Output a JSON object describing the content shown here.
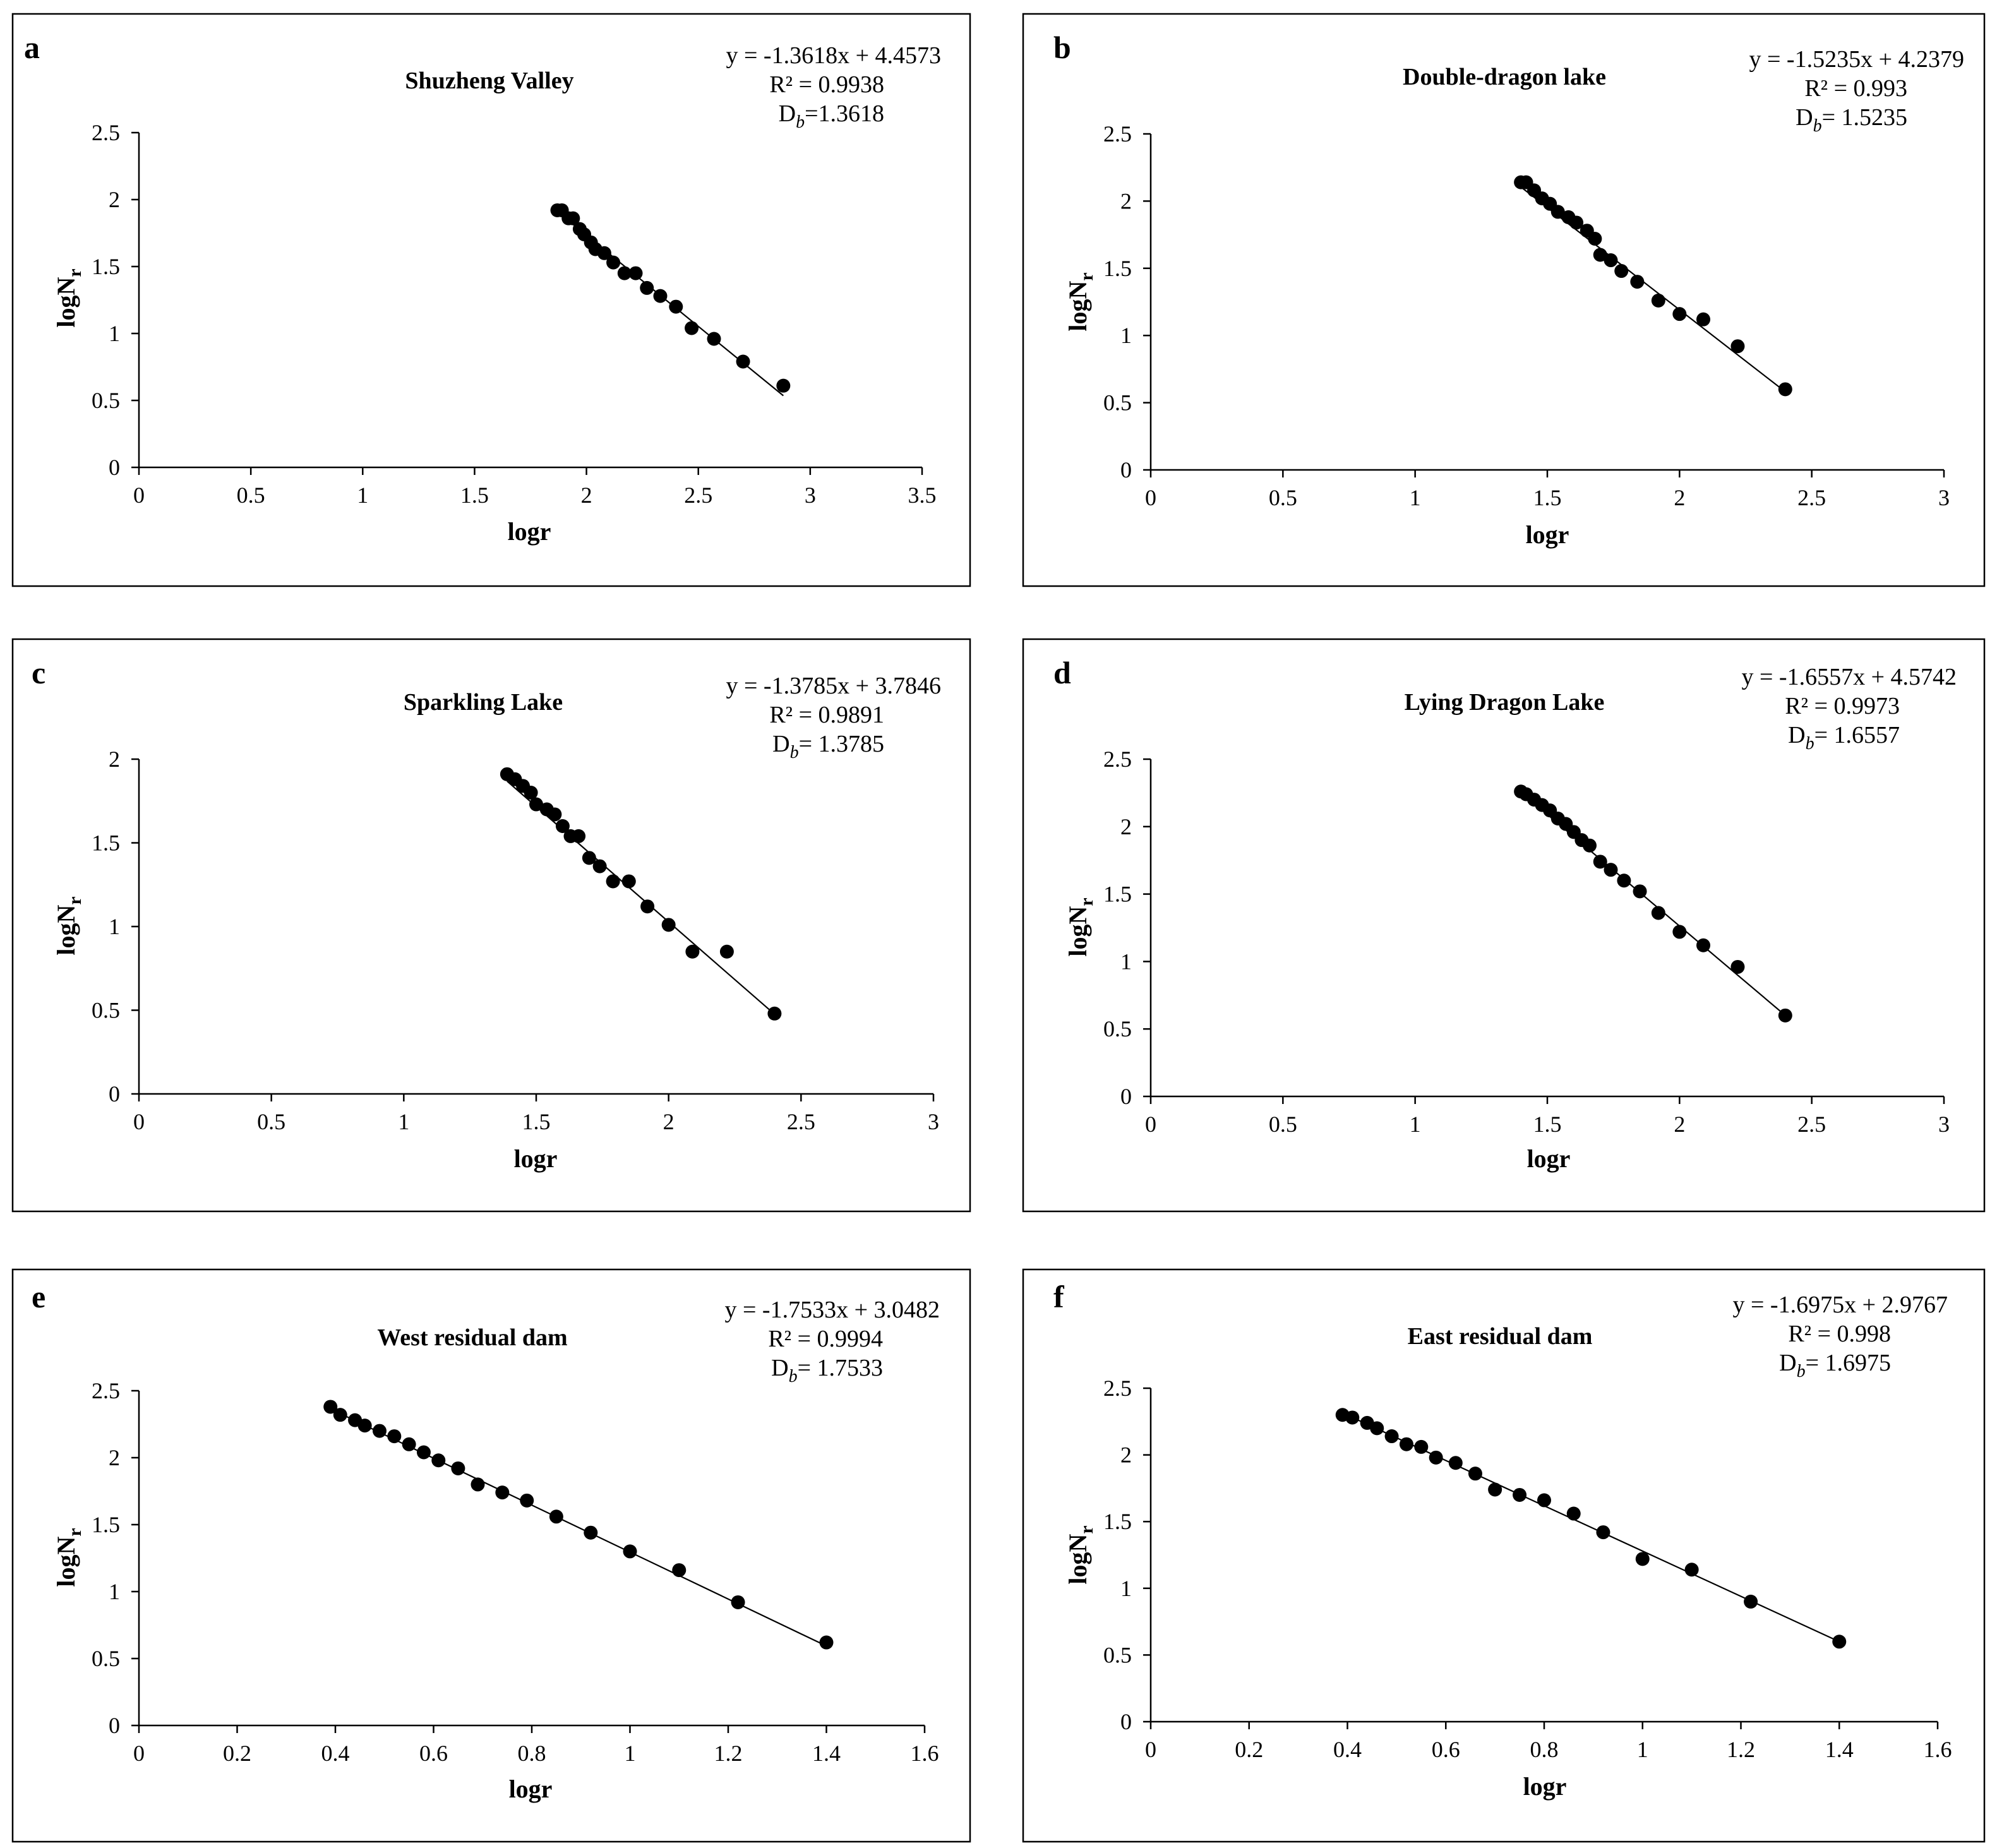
{
  "chart_data": [
    {
      "type": "scatter",
      "panel_letter": "a",
      "title": "Shuzheng Valley",
      "xlabel": "logr",
      "ylabel_main": "logN",
      "ylabel_sub": "r",
      "xlim": [
        0,
        3.5
      ],
      "xstep": 0.5,
      "xticks": [
        "0",
        "0.5",
        "1",
        "1.5",
        "2",
        "2.5",
        "3",
        "3.5"
      ],
      "ylim": [
        0,
        2.5
      ],
      "ystep": 0.5,
      "yticks": [
        "0",
        "0.5",
        "1",
        "1.5",
        "2",
        "2.5"
      ],
      "equation": "y = -1.3618x + 4.4573",
      "r2": "R² = 0.9938",
      "db_prefix": "D",
      "db_sub": "b",
      "db_value": "=1.3618",
      "slope": -1.3618,
      "intercept": 4.4573,
      "trend_x": [
        1.87,
        2.88
      ],
      "points": [
        [
          1.87,
          1.92
        ],
        [
          1.89,
          1.92
        ],
        [
          1.92,
          1.86
        ],
        [
          1.94,
          1.86
        ],
        [
          1.97,
          1.78
        ],
        [
          1.99,
          1.74
        ],
        [
          2.02,
          1.68
        ],
        [
          2.04,
          1.63
        ],
        [
          2.08,
          1.6
        ],
        [
          2.12,
          1.53
        ],
        [
          2.17,
          1.45
        ],
        [
          2.22,
          1.45
        ],
        [
          2.27,
          1.34
        ],
        [
          2.33,
          1.28
        ],
        [
          2.4,
          1.2
        ],
        [
          2.47,
          1.04
        ],
        [
          2.57,
          0.96
        ],
        [
          2.7,
          0.79
        ],
        [
          2.88,
          0.61
        ]
      ]
    },
    {
      "type": "scatter",
      "panel_letter": "b",
      "title": "Double-dragon lake",
      "xlabel": "logr",
      "ylabel_main": "logN",
      "ylabel_sub": "r",
      "xlim": [
        0,
        3
      ],
      "xstep": 0.5,
      "xticks": [
        "0",
        "0.5",
        "1",
        "1.5",
        "2",
        "2.5",
        "3"
      ],
      "ylim": [
        0,
        2.5
      ],
      "ystep": 0.5,
      "yticks": [
        "0",
        "0.5",
        "1",
        "1.5",
        "2",
        "2.5"
      ],
      "equation": "y = -1.5235x + 4.2379",
      "r2": "R² = 0.993",
      "db_prefix": "D",
      "db_sub": "b",
      "db_value": "= 1.5235",
      "slope": -1.5235,
      "intercept": 4.2379,
      "trend_x": [
        1.39,
        2.4
      ],
      "points": [
        [
          1.4,
          2.14
        ],
        [
          1.42,
          2.14
        ],
        [
          1.45,
          2.08
        ],
        [
          1.48,
          2.02
        ],
        [
          1.51,
          1.98
        ],
        [
          1.54,
          1.92
        ],
        [
          1.58,
          1.88
        ],
        [
          1.61,
          1.84
        ],
        [
          1.65,
          1.78
        ],
        [
          1.68,
          1.72
        ],
        [
          1.7,
          1.6
        ],
        [
          1.74,
          1.56
        ],
        [
          1.78,
          1.48
        ],
        [
          1.84,
          1.4
        ],
        [
          1.92,
          1.26
        ],
        [
          2.0,
          1.16
        ],
        [
          2.09,
          1.12
        ],
        [
          2.22,
          0.92
        ],
        [
          2.4,
          0.6
        ]
      ]
    },
    {
      "type": "scatter",
      "panel_letter": "c",
      "title": "Sparkling Lake",
      "xlabel": "logr",
      "ylabel_main": "logN",
      "ylabel_sub": "r",
      "xlim": [
        0,
        3
      ],
      "xstep": 0.5,
      "xticks": [
        "0",
        "0.5",
        "1",
        "1.5",
        "2",
        "2.5",
        "3"
      ],
      "ylim": [
        0,
        2
      ],
      "ystep": 0.5,
      "yticks": [
        "0",
        "0.5",
        "1",
        "1.5",
        "2"
      ],
      "equation": "y = -1.3785x + 3.7846",
      "r2": "R² = 0.9891",
      "db_prefix": "D",
      "db_sub": "b",
      "db_value": "= 1.3785",
      "slope": -1.3785,
      "intercept": 3.7846,
      "trend_x": [
        1.39,
        2.4
      ],
      "points": [
        [
          1.39,
          1.91
        ],
        [
          1.42,
          1.88
        ],
        [
          1.45,
          1.84
        ],
        [
          1.48,
          1.8
        ],
        [
          1.5,
          1.73
        ],
        [
          1.54,
          1.7
        ],
        [
          1.57,
          1.67
        ],
        [
          1.6,
          1.6
        ],
        [
          1.63,
          1.54
        ],
        [
          1.66,
          1.54
        ],
        [
          1.7,
          1.41
        ],
        [
          1.74,
          1.36
        ],
        [
          1.79,
          1.27
        ],
        [
          1.85,
          1.27
        ],
        [
          1.92,
          1.12
        ],
        [
          2.0,
          1.01
        ],
        [
          2.09,
          0.85
        ],
        [
          2.22,
          0.85
        ],
        [
          2.4,
          0.48
        ]
      ]
    },
    {
      "type": "scatter",
      "panel_letter": "d",
      "title": "Lying Dragon Lake",
      "xlabel": "logr",
      "ylabel_main": "logN",
      "ylabel_sub": "r",
      "xlim": [
        0,
        3
      ],
      "xstep": 0.5,
      "xticks": [
        "0",
        "0.5",
        "1",
        "1.5",
        "2",
        "2.5",
        "3"
      ],
      "ylim": [
        0,
        2.5
      ],
      "ystep": 0.5,
      "yticks": [
        "0",
        "0.5",
        "1",
        "1.5",
        "2",
        "2.5"
      ],
      "equation": "y = -1.6557x + 4.5742",
      "r2": "R² = 0.9973",
      "db_prefix": "D",
      "db_sub": "b",
      "db_value": "= 1.6557",
      "slope": -1.6557,
      "intercept": 4.5742,
      "trend_x": [
        1.39,
        2.4
      ],
      "points": [
        [
          1.4,
          2.26
        ],
        [
          1.42,
          2.24
        ],
        [
          1.45,
          2.2
        ],
        [
          1.48,
          2.16
        ],
        [
          1.51,
          2.12
        ],
        [
          1.54,
          2.06
        ],
        [
          1.57,
          2.02
        ],
        [
          1.6,
          1.96
        ],
        [
          1.63,
          1.9
        ],
        [
          1.66,
          1.86
        ],
        [
          1.7,
          1.74
        ],
        [
          1.74,
          1.68
        ],
        [
          1.79,
          1.6
        ],
        [
          1.85,
          1.52
        ],
        [
          1.92,
          1.36
        ],
        [
          2.0,
          1.22
        ],
        [
          2.09,
          1.12
        ],
        [
          2.22,
          0.96
        ],
        [
          2.4,
          0.6
        ]
      ]
    },
    {
      "type": "scatter",
      "panel_letter": "e",
      "title": "West residual dam",
      "xlabel": "logr",
      "ylabel_main": "logN",
      "ylabel_sub": "r",
      "xlim": [
        0,
        1.6
      ],
      "xstep": 0.2,
      "xticks": [
        "0",
        "0.2",
        "0.4",
        "0.6",
        "0.8",
        "1",
        "1.2",
        "1.4",
        "1.6"
      ],
      "ylim": [
        0,
        2.5
      ],
      "ystep": 0.5,
      "yticks": [
        "0",
        "0.5",
        "1",
        "1.5",
        "2",
        "2.5"
      ],
      "equation": "y = -1.7533x + 3.0482",
      "r2": "R² = 0.9994",
      "db_prefix": "D",
      "db_sub": "b",
      "db_value": "= 1.7533",
      "slope": -1.7533,
      "intercept": 3.0482,
      "trend_x": [
        0.39,
        1.4
      ],
      "points": [
        [
          0.39,
          2.38
        ],
        [
          0.41,
          2.32
        ],
        [
          0.44,
          2.28
        ],
        [
          0.46,
          2.24
        ],
        [
          0.49,
          2.2
        ],
        [
          0.52,
          2.16
        ],
        [
          0.55,
          2.1
        ],
        [
          0.58,
          2.04
        ],
        [
          0.61,
          1.98
        ],
        [
          0.65,
          1.92
        ],
        [
          0.69,
          1.8
        ],
        [
          0.74,
          1.74
        ],
        [
          0.79,
          1.68
        ],
        [
          0.85,
          1.56
        ],
        [
          0.92,
          1.44
        ],
        [
          1.0,
          1.3
        ],
        [
          1.1,
          1.16
        ],
        [
          1.22,
          0.92
        ],
        [
          1.4,
          0.62
        ]
      ]
    },
    {
      "type": "scatter",
      "panel_letter": "f",
      "title": "East residual dam",
      "xlabel": "logr",
      "ylabel_main": "logN",
      "ylabel_sub": "r",
      "xlim": [
        0,
        1.6
      ],
      "xstep": 0.2,
      "xticks": [
        "0",
        "0.2",
        "0.4",
        "0.6",
        "0.8",
        "1",
        "1.2",
        "1.4",
        "1.6"
      ],
      "ylim": [
        0,
        2.5
      ],
      "ystep": 0.5,
      "yticks": [
        "0",
        "0.5",
        "1",
        "1.5",
        "2",
        "2.5"
      ],
      "equation": "y = -1.6975x + 2.9767",
      "r2": "R² = 0.998",
      "db_prefix": "D",
      "db_sub": "b",
      "db_value": "= 1.6975",
      "slope": -1.6975,
      "intercept": 2.9767,
      "trend_x": [
        0.39,
        1.4
      ],
      "points": [
        [
          0.39,
          2.3
        ],
        [
          0.41,
          2.28
        ],
        [
          0.44,
          2.24
        ],
        [
          0.46,
          2.2
        ],
        [
          0.49,
          2.14
        ],
        [
          0.52,
          2.08
        ],
        [
          0.55,
          2.06
        ],
        [
          0.58,
          1.98
        ],
        [
          0.62,
          1.94
        ],
        [
          0.66,
          1.86
        ],
        [
          0.7,
          1.74
        ],
        [
          0.75,
          1.7
        ],
        [
          0.8,
          1.66
        ],
        [
          0.86,
          1.56
        ],
        [
          0.92,
          1.42
        ],
        [
          1.0,
          1.22
        ],
        [
          1.1,
          1.14
        ],
        [
          1.22,
          0.9
        ],
        [
          1.4,
          0.6
        ]
      ]
    }
  ]
}
